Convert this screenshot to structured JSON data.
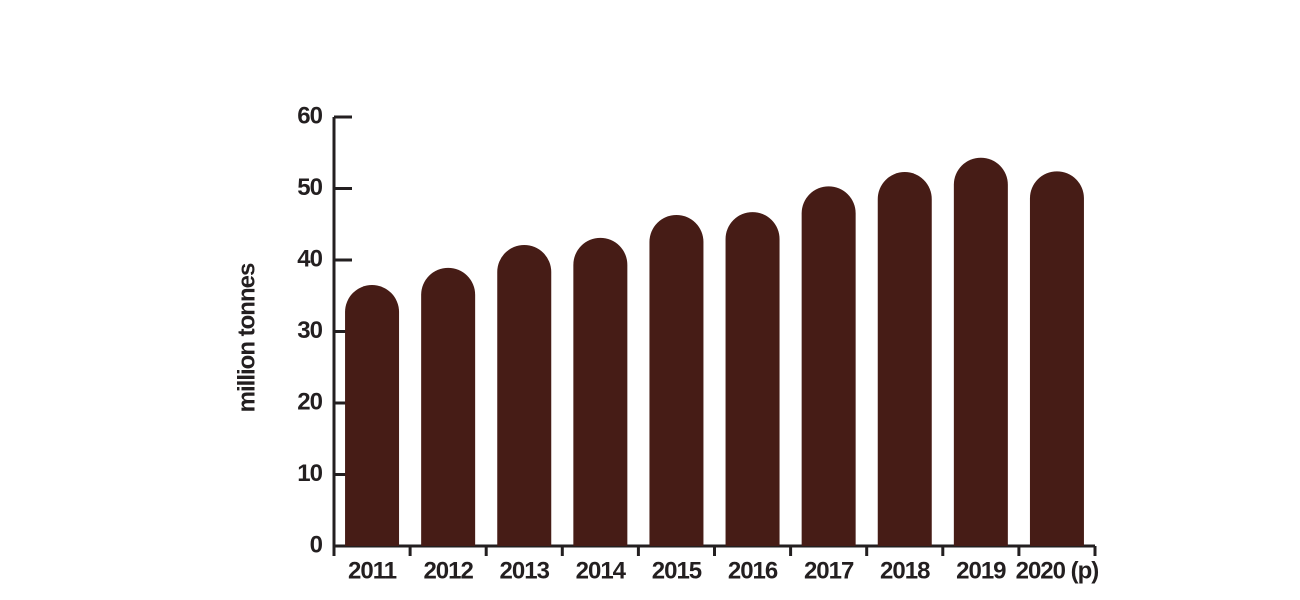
{
  "chart_data": {
    "type": "bar",
    "y_label": "million tonnes",
    "categories": [
      "2011",
      "2012",
      "2013",
      "2014",
      "2015",
      "2016",
      "2017",
      "2018",
      "2019",
      "2020 (p)"
    ],
    "values": [
      36.5,
      38.9,
      42.1,
      43.1,
      46.3,
      46.7,
      50.3,
      52.3,
      54.3,
      52.4
    ],
    "color": "#461c16",
    "ylim": [
      0,
      60
    ],
    "yticks": [
      0,
      10,
      20,
      30,
      40,
      50,
      60
    ],
    "grid": false
  }
}
